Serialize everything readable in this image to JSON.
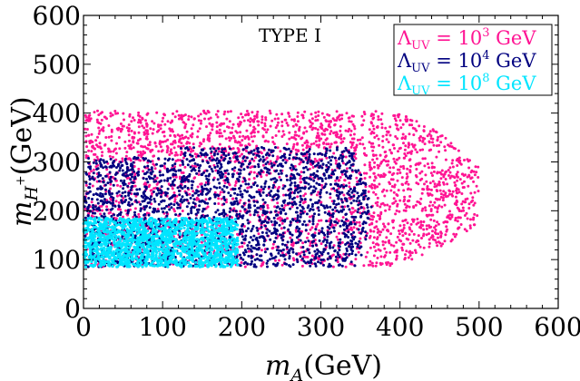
{
  "chart_data": {
    "type": "scatter",
    "title": "TYPE I",
    "xlabel_base": "m",
    "xlabel_sub": "A",
    "xlabel_unit": "(GeV)",
    "ylabel_base": "m",
    "ylabel_sub": "H",
    "ylabel_sup": "+",
    "ylabel_unit": "(GeV)",
    "xlim": [
      0,
      600
    ],
    "ylim": [
      0,
      600
    ],
    "xticks": [
      "0",
      "100",
      "200",
      "300",
      "400",
      "500",
      "600"
    ],
    "yticks": [
      "0",
      "100",
      "200",
      "300",
      "400",
      "500",
      "600"
    ],
    "legend_position": "top-right",
    "series": [
      {
        "name": "Λ_UV = 10^3 GeV",
        "legend_lambda": "Λ",
        "legend_sub": "UV",
        "legend_eq": " = 10",
        "legend_exp": "3",
        "legend_unit": " GeV",
        "color": "#ff1493",
        "region": {
          "x_range": [
            0,
            500
          ],
          "y_range": [
            85,
            415
          ],
          "shape": "upper-rounded-right"
        }
      },
      {
        "name": "Λ_UV = 10^4 GeV",
        "legend_lambda": "Λ",
        "legend_sub": "UV",
        "legend_eq": " = 10",
        "legend_exp": "4",
        "legend_unit": " GeV",
        "color": "#000080",
        "region": {
          "x_range": [
            0,
            365
          ],
          "y_range": [
            85,
            340
          ],
          "shape": "rounded-right"
        }
      },
      {
        "name": "Λ_UV = 10^8 GeV",
        "legend_lambda": "Λ",
        "legend_sub": "UV",
        "legend_eq": " = 10",
        "legend_exp": "8",
        "legend_unit": " GeV",
        "color": "#00e5ff",
        "region": {
          "x_range": [
            0,
            195
          ],
          "y_range": [
            85,
            185
          ],
          "shape": "box"
        }
      }
    ]
  }
}
